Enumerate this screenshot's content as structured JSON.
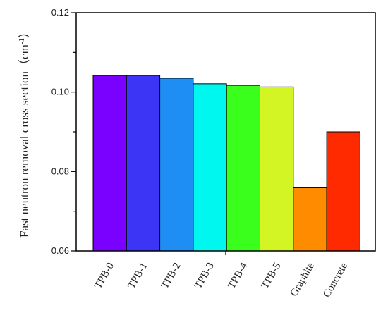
{
  "chart_data": {
    "type": "bar",
    "title": "",
    "xlabel": "",
    "ylabel": "Fast neutron removal cross section",
    "ylabel_unit_open": "（cm",
    "ylabel_unit_sup": "-1",
    "ylabel_unit_close": "）",
    "ylim": [
      0.06,
      0.12
    ],
    "yticks": [
      "0.06",
      "0.08",
      "0.10",
      "0.12"
    ],
    "grid": false,
    "categories": [
      "TPB-0",
      "TPB-1",
      "TPB-2",
      "TPB-3",
      "TPB-4",
      "TPB-5",
      "Graphite",
      "Concrete"
    ],
    "values": [
      0.1042,
      0.1042,
      0.1035,
      0.1021,
      0.1017,
      0.1013,
      0.0759,
      0.09
    ],
    "colors": [
      "#7a00ff",
      "#3c35f5",
      "#1e8ef5",
      "#00f7f0",
      "#3aff1c",
      "#d4f524",
      "#ff8c00",
      "#ff2a00"
    ]
  }
}
